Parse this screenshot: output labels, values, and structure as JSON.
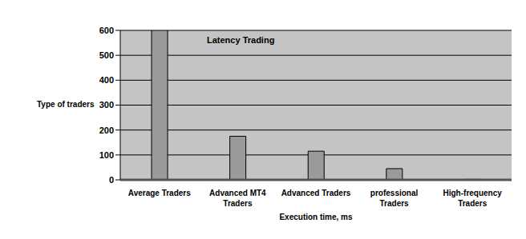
{
  "chart_data": {
    "type": "bar",
    "title": "Latency Trading",
    "x_label": "Execution time, ms",
    "y_label": "Type of traders",
    "categories": [
      "Average Traders",
      "Advanced MT4 Traders",
      "Advanced Traders",
      "professional Traders",
      "High-frequency Traders"
    ],
    "values": [
      600,
      175,
      115,
      45,
      2
    ],
    "color": "#9a9a9a",
    "ylim": [
      0,
      600
    ],
    "yticks": [
      0,
      100,
      200,
      300,
      400,
      500,
      600
    ],
    "grid": true
  }
}
